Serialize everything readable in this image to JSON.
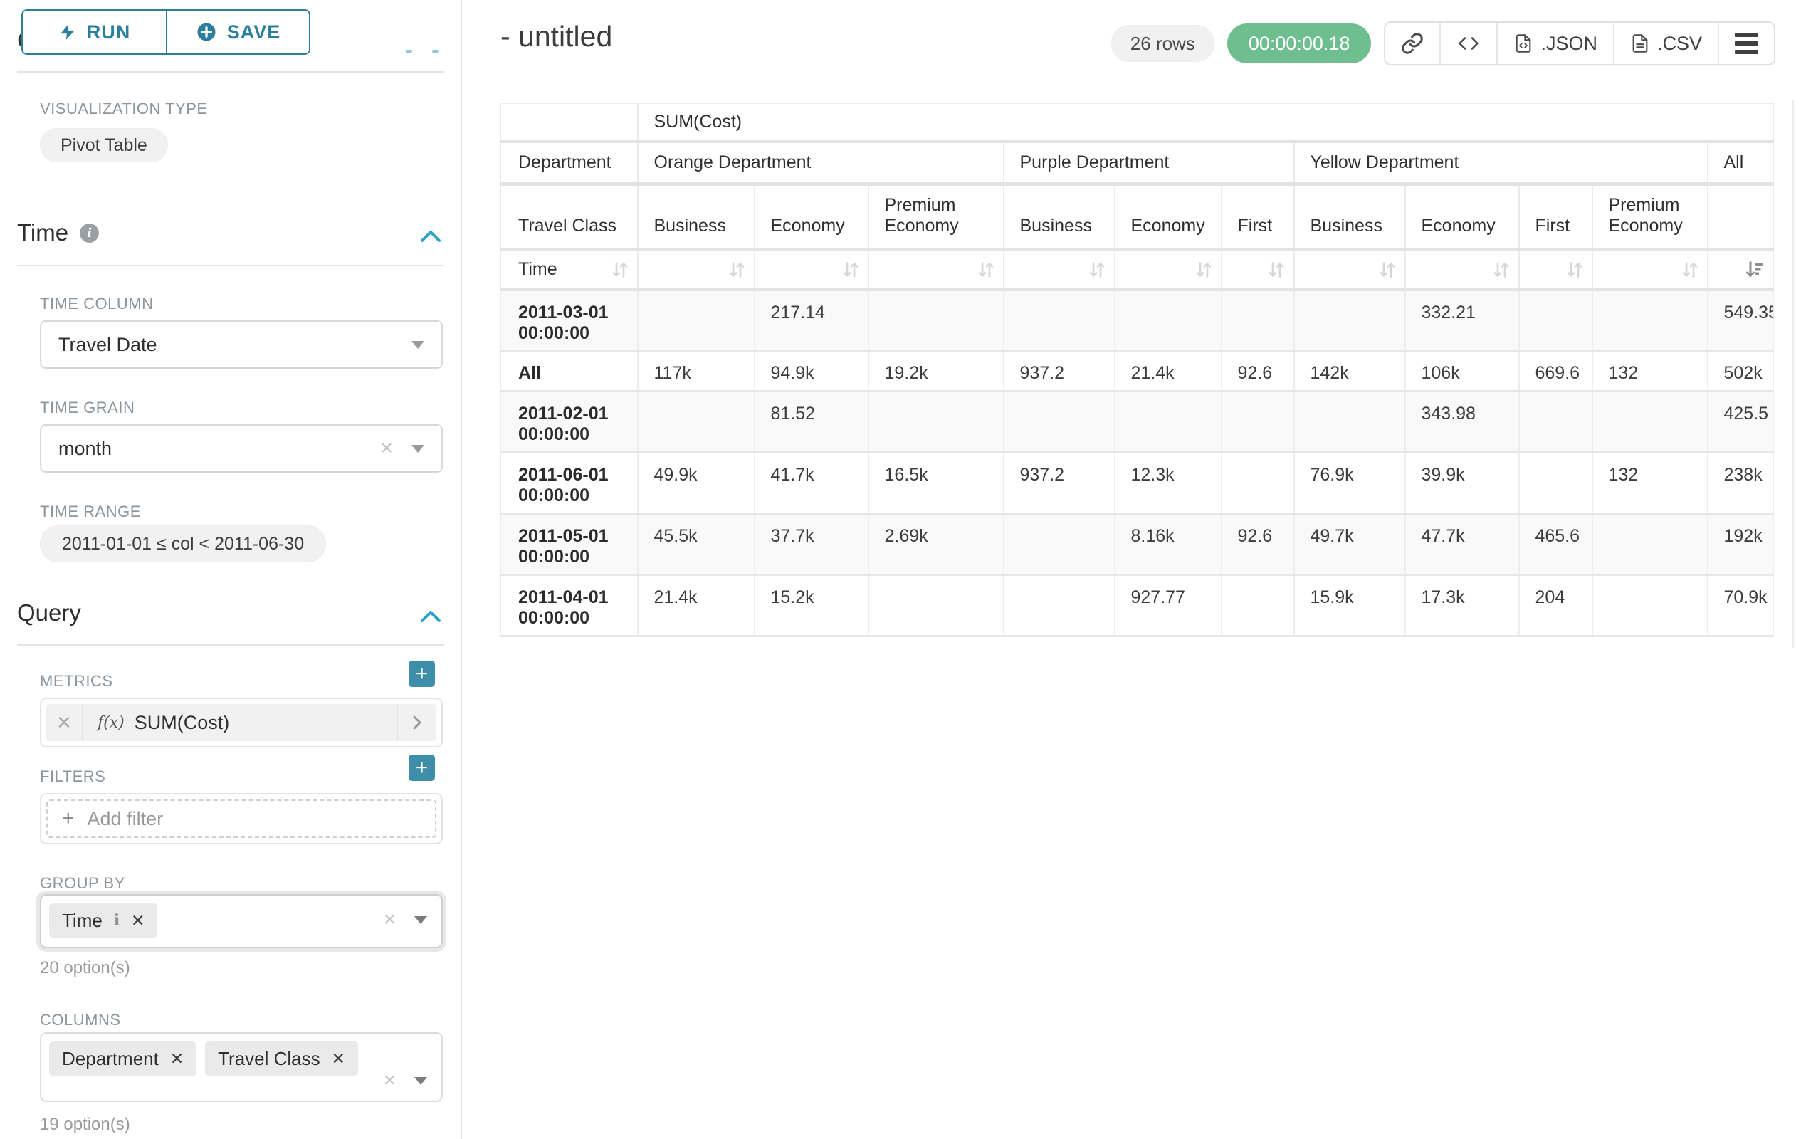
{
  "colors": {
    "accent_teal": "#2b7f9d",
    "plus_button_teal": "#3d8fa9",
    "timer_green": "#6ebe90",
    "section_chevron_blue": "#2aa4cb",
    "tag_background": "#eaeaea"
  },
  "sidebar": {
    "run_label": "RUN",
    "save_label": "SAVE",
    "chart_type_heading": "Chart Type",
    "visualization_type_label": "VISUALIZATION TYPE",
    "visualization_type_value": "Pivot Table",
    "time_section": {
      "title": "Time",
      "time_column_label": "TIME COLUMN",
      "time_column_value": "Travel Date",
      "time_grain_label": "TIME GRAIN",
      "time_grain_value": "month",
      "time_range_label": "TIME RANGE",
      "time_range_value": "2011-01-01 ≤ col < 2011-06-30"
    },
    "query_section": {
      "title": "Query",
      "metrics_label": "METRICS",
      "metric_function_prefix": "f(x)",
      "metric_value": "SUM(Cost)",
      "filters_label": "FILTERS",
      "add_filter_placeholder": "Add filter",
      "group_by_label": "GROUP BY",
      "group_by_tags": [
        {
          "label": "Time"
        }
      ],
      "group_by_hint": "20 option(s)",
      "columns_label": "COLUMNS",
      "columns_tags": [
        {
          "label": "Department"
        },
        {
          "label": "Travel Class"
        }
      ],
      "columns_hint": "19 option(s)"
    }
  },
  "header": {
    "title": "- untitled",
    "row_count": "26 rows",
    "timer": "00:00:00.18",
    "json_label": ".JSON",
    "csv_label": ".CSV"
  },
  "icons": {
    "run": "lightning-icon",
    "save": "plus-circle-icon",
    "share": "link-icon",
    "embed": "code-icon",
    "menu": "hamburger-icon",
    "sort": "sort-arrows-icon",
    "sorted_desc": "sort-descending-icon"
  },
  "pivot_table": {
    "metric_header": "SUM(Cost)",
    "column_dimension_label": "Department",
    "row_dimension_label": "Travel Class",
    "time_label": "Time",
    "col_groups": [
      {
        "label": "Orange Department",
        "cols": [
          "Business",
          "Economy",
          "Premium Economy"
        ]
      },
      {
        "label": "Purple Department",
        "cols": [
          "Business",
          "Economy",
          "First"
        ]
      },
      {
        "label": "Yellow Department",
        "cols": [
          "Business",
          "Economy",
          "First",
          "Premium Economy"
        ]
      },
      {
        "label": "All",
        "cols": [
          ""
        ]
      }
    ],
    "rows": [
      {
        "label": "2011-03-01 00:00:00",
        "values": [
          "",
          "217.14",
          "",
          "",
          "",
          "",
          "",
          "332.21",
          "",
          "",
          "549.35"
        ]
      },
      {
        "label": "All",
        "values": [
          "117k",
          "94.9k",
          "19.2k",
          "937.2",
          "21.4k",
          "92.6",
          "142k",
          "106k",
          "669.6",
          "132",
          "502k"
        ]
      },
      {
        "label": "2011-02-01 00:00:00",
        "values": [
          "",
          "81.52",
          "",
          "",
          "",
          "",
          "",
          "343.98",
          "",
          "",
          "425.5"
        ]
      },
      {
        "label": "2011-06-01 00:00:00",
        "values": [
          "49.9k",
          "41.7k",
          "16.5k",
          "937.2",
          "12.3k",
          "",
          "76.9k",
          "39.9k",
          "",
          "132",
          "238k"
        ]
      },
      {
        "label": "2011-05-01 00:00:00",
        "values": [
          "45.5k",
          "37.7k",
          "2.69k",
          "",
          "8.16k",
          "92.6",
          "49.7k",
          "47.7k",
          "465.6",
          "",
          "192k"
        ]
      },
      {
        "label": "2011-04-01 00:00:00",
        "values": [
          "21.4k",
          "15.2k",
          "",
          "",
          "927.77",
          "",
          "15.9k",
          "17.3k",
          "204",
          "",
          "70.9k"
        ]
      }
    ]
  }
}
